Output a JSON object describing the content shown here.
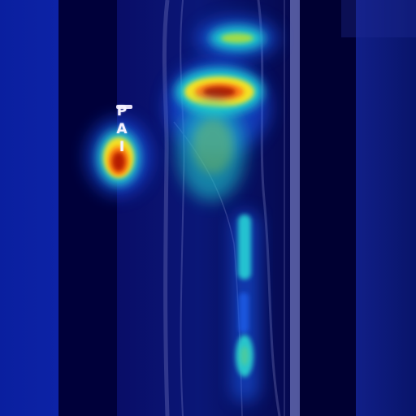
{
  "image": {
    "marker_letters": [
      "P",
      "A",
      "I"
    ],
    "colors": {
      "background": "#00054a",
      "dark_band": "#00002f",
      "side_band": "#0a1c9a",
      "hot": "#d12a00",
      "warm": "#ffd11a",
      "cool": "#22c6cf"
    }
  }
}
